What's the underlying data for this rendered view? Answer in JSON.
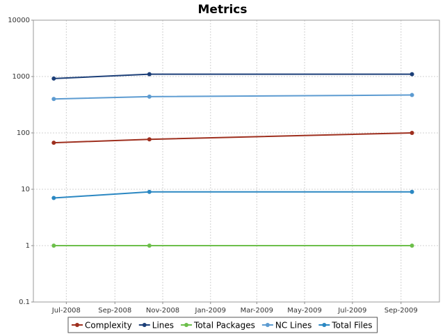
{
  "chart_data": {
    "type": "line",
    "title": "Metrics",
    "x": [
      "2008-06",
      "2008-10",
      "2009-09"
    ],
    "xlim": [
      "2008-05",
      "2009-10"
    ],
    "xticks": [
      {
        "value": "2008-07",
        "label": "Jul-2008"
      },
      {
        "value": "2008-09",
        "label": "Sep-2008"
      },
      {
        "value": "2008-11",
        "label": "Nov-2008"
      },
      {
        "value": "2009-01",
        "label": "Jan-2009"
      },
      {
        "value": "2009-03",
        "label": "Mar-2009"
      },
      {
        "value": "2009-05",
        "label": "May-2009"
      },
      {
        "value": "2009-07",
        "label": "Jul-2009"
      },
      {
        "value": "2009-09",
        "label": "Sep-2009"
      }
    ],
    "ylim": [
      0.1,
      10000
    ],
    "yticks": [
      0.1,
      1,
      10,
      100,
      1000,
      10000
    ],
    "log_y": true,
    "grid": true,
    "legend": "bottom",
    "series": [
      {
        "name": "Complexity",
        "color": "#9e2f1e",
        "values": [
          67,
          77,
          100
        ]
      },
      {
        "name": "Lines",
        "color": "#1c3f78",
        "values": [
          920,
          1100,
          1100
        ]
      },
      {
        "name": "Total Packages",
        "color": "#6cbf4a",
        "values": [
          1,
          1,
          1
        ]
      },
      {
        "name": "NC Lines",
        "color": "#5c9bd1",
        "values": [
          400,
          440,
          470
        ]
      },
      {
        "name": "Total Files",
        "color": "#2a87c2",
        "values": [
          7,
          9,
          9
        ]
      }
    ]
  }
}
